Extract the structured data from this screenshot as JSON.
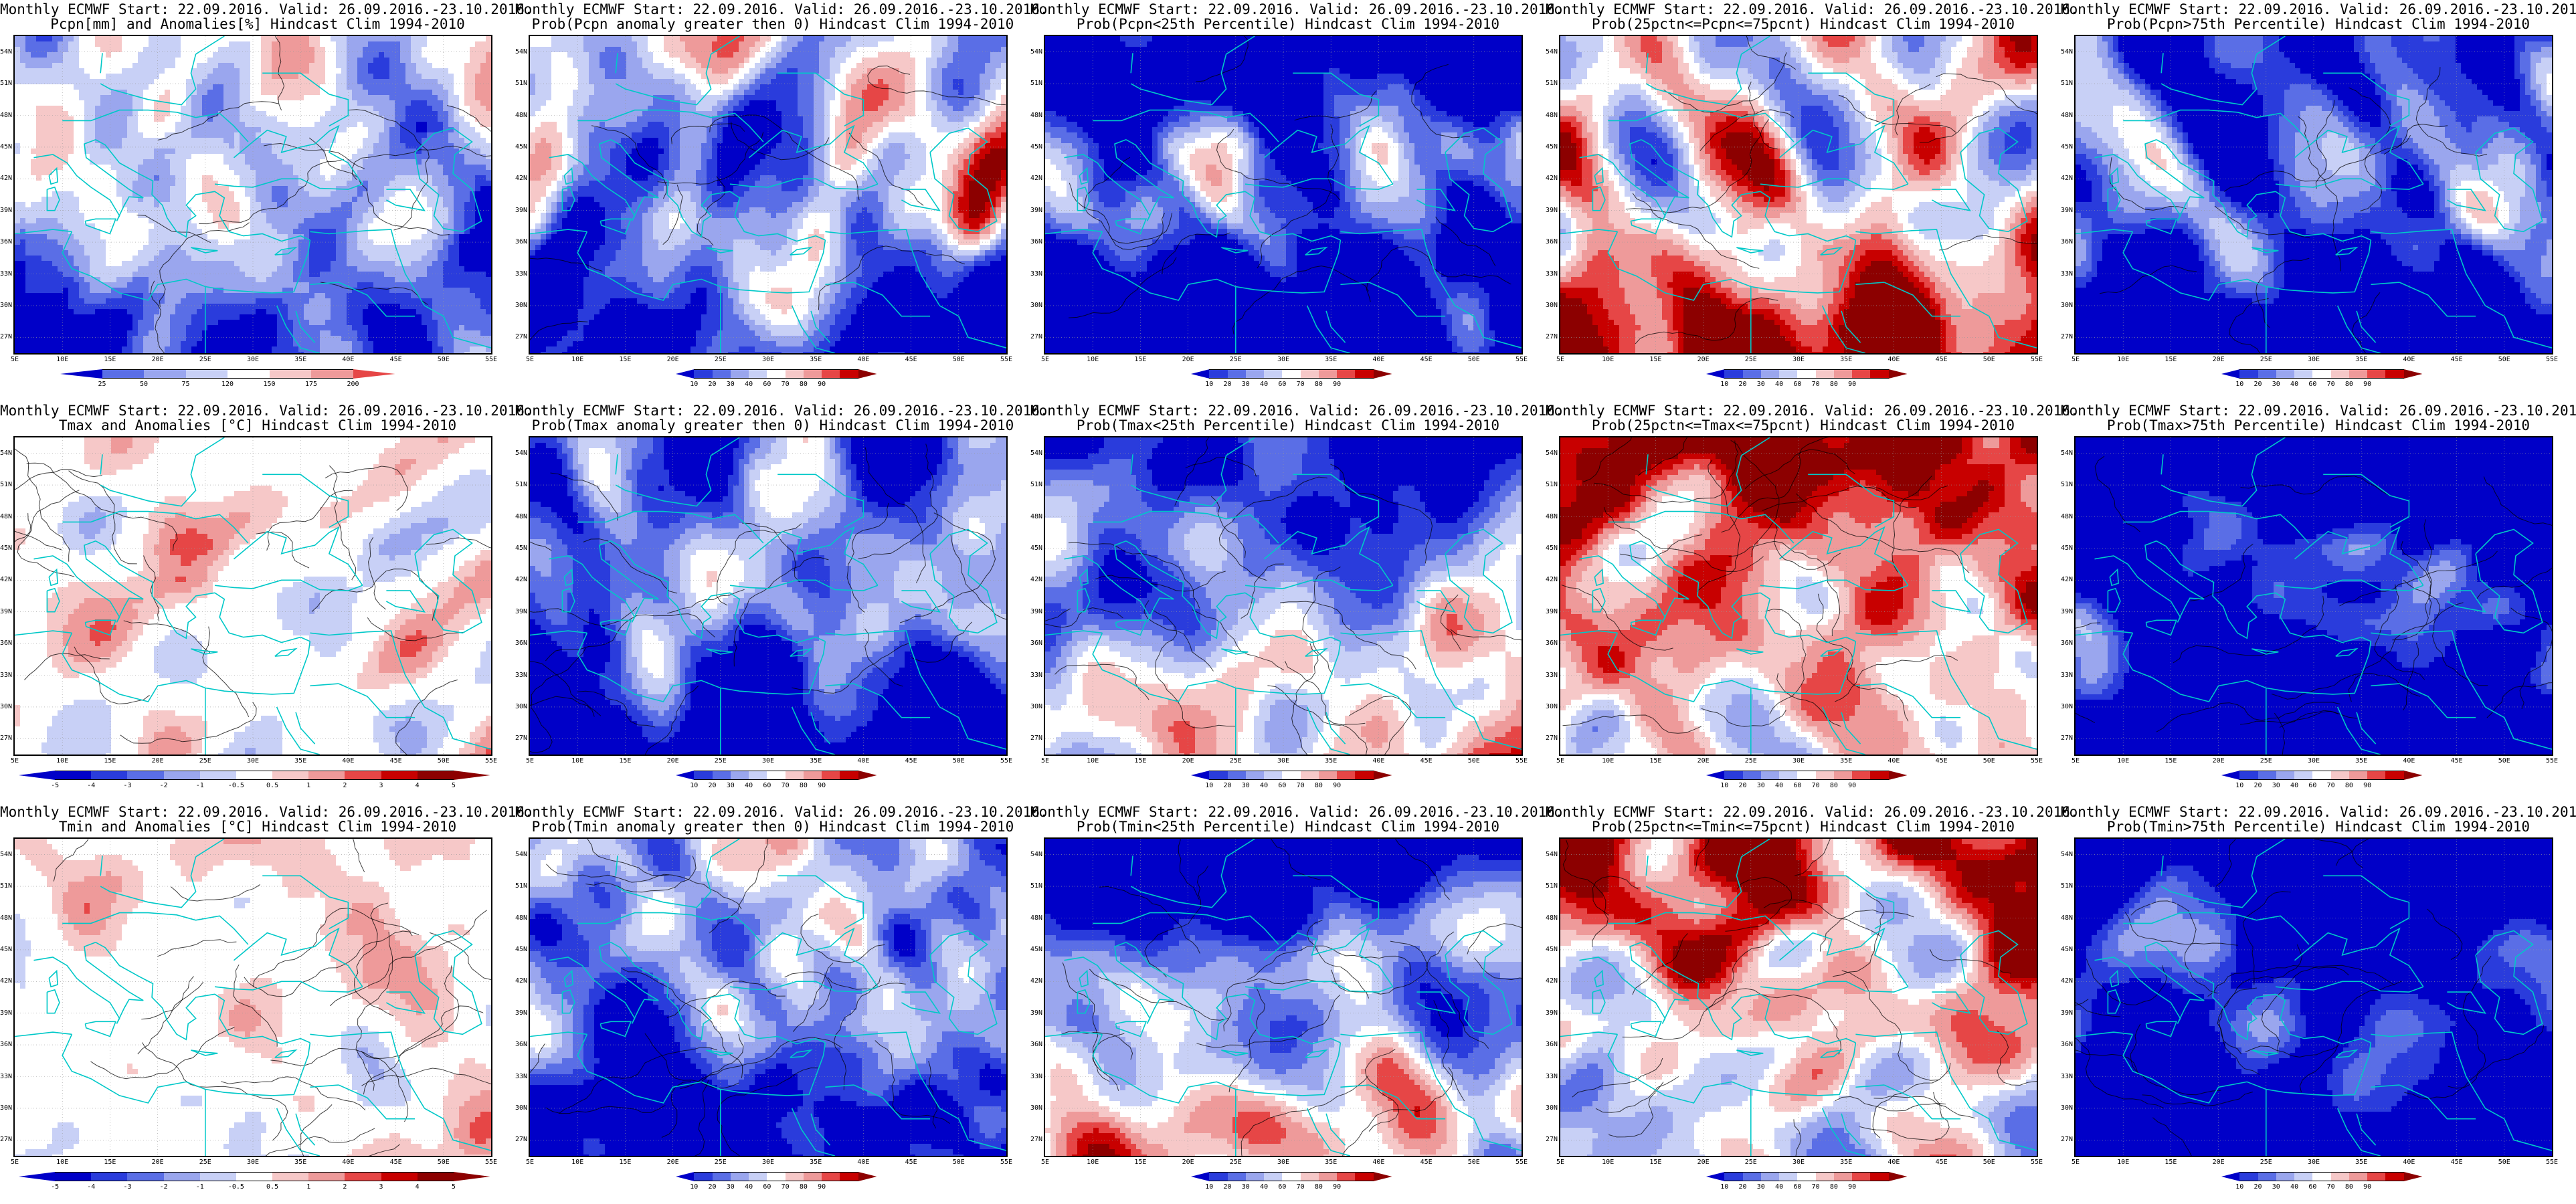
{
  "panels": [
    {
      "title_line1": "Monthly ECMWF Start: 22.09.2016. Valid: 26.09.2016.-23.10.2016.",
      "title_line2": "Pcpn[mm] and Anomalies[%] Hindcast Clim 1994-2010",
      "scale": "precip_anom",
      "field": "precip",
      "colorbar_ticks": [
        "25",
        "50",
        "75",
        "120",
        "150",
        "175",
        "200"
      ]
    },
    {
      "title_line1": "Monthly ECMWF Start: 22.09.2016. Valid: 26.09.2016.-23.10.2016.",
      "title_line2": "Prob(Pcpn anomaly greater then 0) Hindcast Clim 1994-2010",
      "scale": "prob",
      "field": "precip_prob",
      "colorbar_ticks": [
        "10",
        "20",
        "30",
        "40",
        "60",
        "70",
        "80",
        "90"
      ]
    },
    {
      "title_line1": "Monthly ECMWF Start: 22.09.2016. Valid: 26.09.2016.-23.10.2016.",
      "title_line2": "Prob(Pcpn<25th Percentile) Hindcast Clim 1994-2010",
      "scale": "prob",
      "field": "precip_low",
      "colorbar_ticks": [
        "10",
        "20",
        "30",
        "40",
        "60",
        "70",
        "80",
        "90"
      ]
    },
    {
      "title_line1": "Monthly ECMWF Start: 22.09.2016. Valid: 26.09.2016.-23.10.2016.",
      "title_line2": "Prob(25pctn<=Pcpn<=75pcnt) Hindcast Clim 1994-2010",
      "scale": "prob",
      "field": "precip_mid",
      "colorbar_ticks": [
        "10",
        "20",
        "30",
        "40",
        "60",
        "70",
        "80",
        "90"
      ]
    },
    {
      "title_line1": "Monthly ECMWF Start: 22.09.2016. Valid: 26.09.2016.-23.10.2016.",
      "title_line2": "Prob(Pcpn>75th Percentile) Hindcast Clim 1994-2010",
      "scale": "prob",
      "field": "precip_high",
      "colorbar_ticks": [
        "10",
        "20",
        "30",
        "40",
        "60",
        "70",
        "80",
        "90"
      ]
    },
    {
      "title_line1": "Monthly ECMWF Start: 22.09.2016. Valid: 26.09.2016.-23.10.2016.",
      "title_line2": "Tmax and Anomalies [°C] Hindcast Clim 1994-2010",
      "scale": "temp_anom",
      "field": "tmax",
      "colorbar_ticks": [
        "-5",
        "-4",
        "-3",
        "-2",
        "-1",
        "-0.5",
        "0.5",
        "1",
        "2",
        "3",
        "4",
        "5"
      ]
    },
    {
      "title_line1": "Monthly ECMWF Start: 22.09.2016. Valid: 26.09.2016.-23.10.2016.",
      "title_line2": "Prob(Tmax anomaly greater then 0) Hindcast Clim 1994-2010",
      "scale": "prob",
      "field": "tmax_prob",
      "colorbar_ticks": [
        "10",
        "20",
        "30",
        "40",
        "60",
        "70",
        "80",
        "90"
      ]
    },
    {
      "title_line1": "Monthly ECMWF Start: 22.09.2016. Valid: 26.09.2016.-23.10.2016.",
      "title_line2": "Prob(Tmax<25th Percentile) Hindcast Clim 1994-2010",
      "scale": "prob",
      "field": "tmax_low",
      "colorbar_ticks": [
        "10",
        "20",
        "30",
        "40",
        "60",
        "70",
        "80",
        "90"
      ]
    },
    {
      "title_line1": "Monthly ECMWF Start: 22.09.2016. Valid: 26.09.2016.-23.10.2016.",
      "title_line2": "Prob(25pctn<=Tmax<=75pcnt) Hindcast Clim 1994-2010",
      "scale": "prob",
      "field": "tmax_mid",
      "colorbar_ticks": [
        "10",
        "20",
        "30",
        "40",
        "60",
        "70",
        "80",
        "90"
      ]
    },
    {
      "title_line1": "Monthly ECMWF Start: 22.09.2016. Valid: 26.09.2016.-23.10.2016.",
      "title_line2": "Prob(Tmax>75th Percentile) Hindcast Clim 1994-2010",
      "scale": "prob",
      "field": "tmax_high",
      "colorbar_ticks": [
        "10",
        "20",
        "30",
        "40",
        "60",
        "70",
        "80",
        "90"
      ]
    },
    {
      "title_line1": "Monthly ECMWF Start: 22.09.2016. Valid: 26.09.2016.-23.10.2016.",
      "title_line2": "Tmin and Anomalies [°C] Hindcast Clim 1994-2010",
      "scale": "temp_anom",
      "field": "tmin",
      "colorbar_ticks": [
        "-5",
        "-4",
        "-3",
        "-2",
        "-1",
        "-0.5",
        "0.5",
        "1",
        "2",
        "3",
        "4",
        "5"
      ]
    },
    {
      "title_line1": "Monthly ECMWF Start: 22.09.2016. Valid: 26.09.2016.-23.10.2016.",
      "title_line2": "Prob(Tmin anomaly greater then 0) Hindcast Clim 1994-2010",
      "scale": "prob",
      "field": "tmin_prob",
      "colorbar_ticks": [
        "10",
        "20",
        "30",
        "40",
        "60",
        "70",
        "80",
        "90"
      ]
    },
    {
      "title_line1": "Monthly ECMWF Start: 22.09.2016. Valid: 26.09.2016.-23.10.2016.",
      "title_line2": "Prob(Tmin<25th Percentile) Hindcast Clim 1994-2010",
      "scale": "prob",
      "field": "tmin_low",
      "colorbar_ticks": [
        "10",
        "20",
        "30",
        "40",
        "60",
        "70",
        "80",
        "90"
      ]
    },
    {
      "title_line1": "Monthly ECMWF Start: 22.09.2016. Valid: 26.09.2016.-23.10.2016.",
      "title_line2": "Prob(25pctn<=Tmin<=75pcnt) Hindcast Clim 1994-2010",
      "scale": "prob",
      "field": "tmin_mid",
      "colorbar_ticks": [
        "10",
        "20",
        "30",
        "40",
        "60",
        "70",
        "80",
        "90"
      ]
    },
    {
      "title_line1": "Monthly ECMWF Start: 22.09.2016. Valid: 26.09.2016.-23.10.2016.",
      "title_line2": "Prob(Tmin>75th Percentile) Hindcast Clim 1994-2010",
      "scale": "prob",
      "field": "tmin_high",
      "colorbar_ticks": [
        "10",
        "20",
        "30",
        "40",
        "60",
        "70",
        "80",
        "90"
      ]
    }
  ],
  "lat_labels": [
    "54N",
    "51N",
    "48N",
    "45N",
    "42N",
    "39N",
    "36N",
    "33N",
    "30N",
    "27N"
  ],
  "lon_labels": [
    "5E",
    "10E",
    "15E",
    "20E",
    "25E",
    "30E",
    "35E",
    "40E",
    "45E",
    "50E",
    "55E"
  ],
  "colors": {
    "deep_blue": "#0000c8",
    "blue": "#2a3cdc",
    "mid_blue": "#5a6ee6",
    "light_blue": "#9aa6ee",
    "pale_blue": "#c8d0f6",
    "white": "#ffffff",
    "pale_red": "#f6c8c8",
    "light_red": "#ee9a9a",
    "red": "#e64646",
    "deep_red": "#c80000",
    "dark_red": "#8c0000",
    "coast": "#00c8c8",
    "contour": "#000000"
  }
}
